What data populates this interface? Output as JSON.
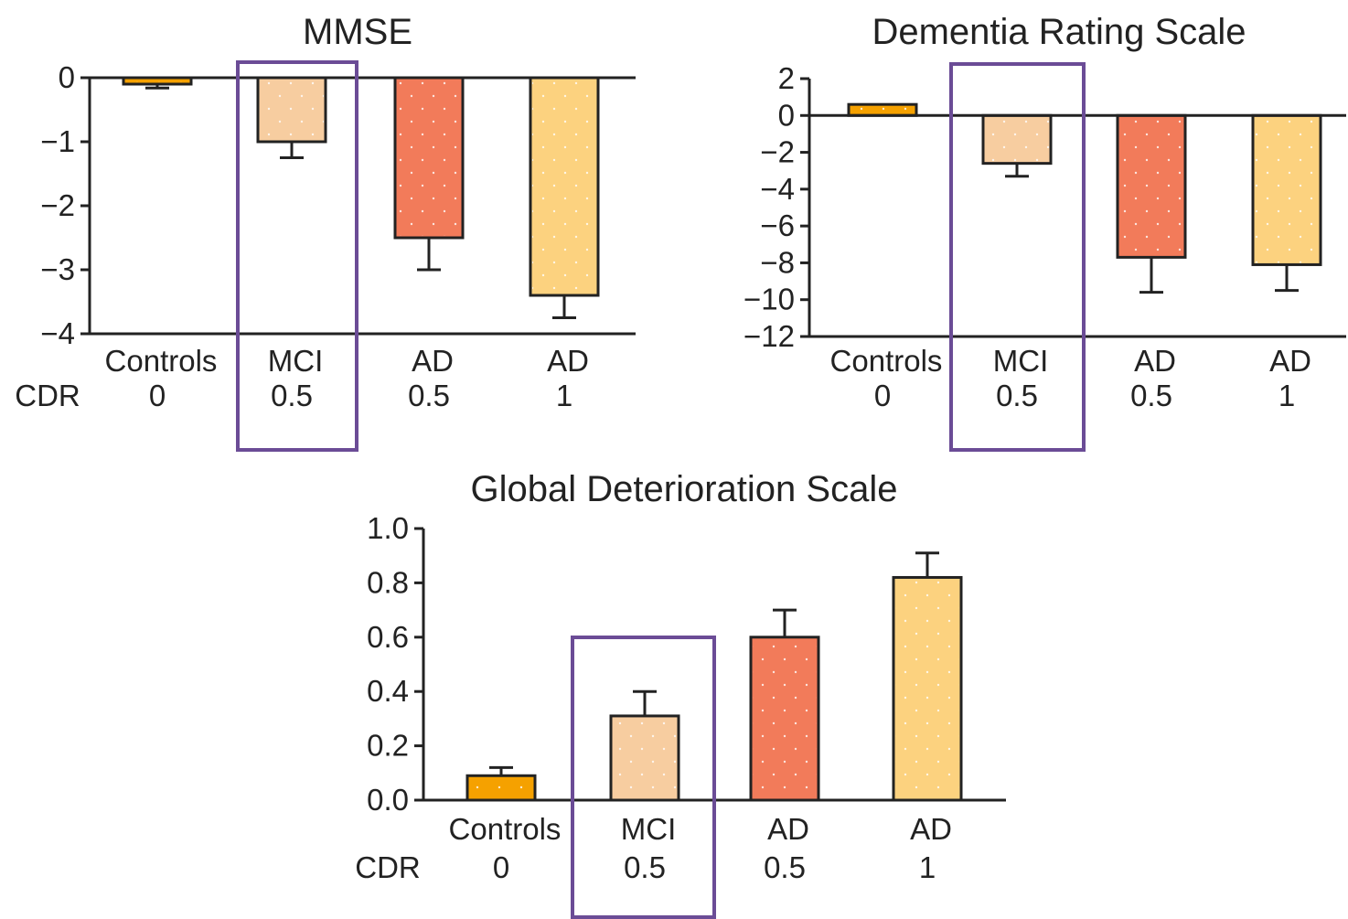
{
  "cdr_label": "CDR",
  "styles": {
    "bar_colors": [
      "#f5a100",
      "#f7cda0",
      "#f27b5a",
      "#fcd27f"
    ],
    "highlight_color": "#6b4c96",
    "axis_color": "#222222"
  },
  "chart_data": [
    {
      "type": "bar",
      "title": "MMSE",
      "categories": [
        "Controls",
        "MCI",
        "AD",
        "AD"
      ],
      "cdr": [
        "0",
        "0.5",
        "0.5",
        "1"
      ],
      "values": [
        -0.1,
        -1.0,
        -2.5,
        -3.4
      ],
      "errors": [
        0.06,
        0.25,
        0.5,
        0.35
      ],
      "ylim": [
        -4,
        0
      ],
      "yticks": [
        0,
        -1,
        -2,
        -3,
        -4
      ],
      "ytick_labels": [
        "0",
        "−1",
        "−2",
        "−3",
        "−4"
      ],
      "highlight_category": "MCI",
      "xlabel": "",
      "ylabel": ""
    },
    {
      "type": "bar",
      "title": "Dementia Rating Scale",
      "categories": [
        "Controls",
        "MCI",
        "AD",
        "AD"
      ],
      "cdr": [
        "0",
        "0.5",
        "0.5",
        "1"
      ],
      "values": [
        0.6,
        -2.6,
        -7.7,
        -8.1
      ],
      "errors": [
        0,
        0.7,
        1.9,
        1.4
      ],
      "ylim": [
        -12,
        2
      ],
      "yticks": [
        2,
        0,
        -2,
        -4,
        -6,
        -8,
        -10,
        -12
      ],
      "ytick_labels": [
        "2",
        "0",
        "−2",
        "−4",
        "−6",
        "−8",
        "−10",
        "−12"
      ],
      "highlight_category": "MCI",
      "xlabel": "",
      "ylabel": ""
    },
    {
      "type": "bar",
      "title": "Global Deterioration Scale",
      "categories": [
        "Controls",
        "MCI",
        "AD",
        "AD"
      ],
      "cdr": [
        "0",
        "0.5",
        "0.5",
        "1"
      ],
      "values": [
        0.09,
        0.31,
        0.6,
        0.82
      ],
      "errors": [
        0.03,
        0.09,
        0.1,
        0.09
      ],
      "ylim": [
        0,
        1.0
      ],
      "yticks": [
        0,
        0.2,
        0.4,
        0.6,
        0.8,
        1.0
      ],
      "ytick_labels": [
        "0.0",
        "0.2",
        "0.4",
        "0.6",
        "0.8",
        "1.0"
      ],
      "highlight_category": "MCI",
      "xlabel": "",
      "ylabel": ""
    }
  ]
}
